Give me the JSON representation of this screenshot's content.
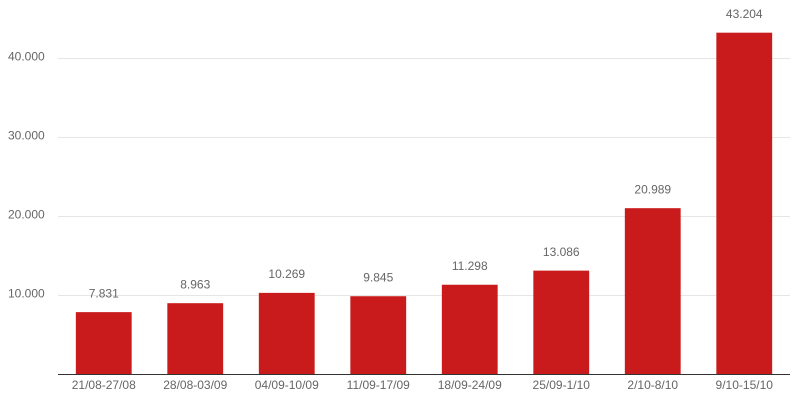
{
  "chart_data": {
    "type": "bar",
    "categories": [
      "21/08-27/08",
      "28/08-03/09",
      "04/09-10/09",
      "11/09-17/09",
      "18/09-24/09",
      "25/09-1/10",
      "2/10-8/10",
      "9/10-15/10"
    ],
    "values": [
      7831,
      8963,
      10269,
      9845,
      11298,
      13086,
      20989,
      43204
    ],
    "value_labels": [
      "7.831",
      "8.963",
      "10.269",
      "9.845",
      "11.298",
      "13.086",
      "20.989",
      "43.204"
    ],
    "color": "#c91b1b",
    "ylim": [
      0,
      45000
    ],
    "yticks": [
      {
        "value": 10000,
        "label": "10.000"
      },
      {
        "value": 20000,
        "label": "20.000"
      },
      {
        "value": 30000,
        "label": "30.000"
      },
      {
        "value": 40000,
        "label": "40.000"
      }
    ],
    "grid": true
  }
}
